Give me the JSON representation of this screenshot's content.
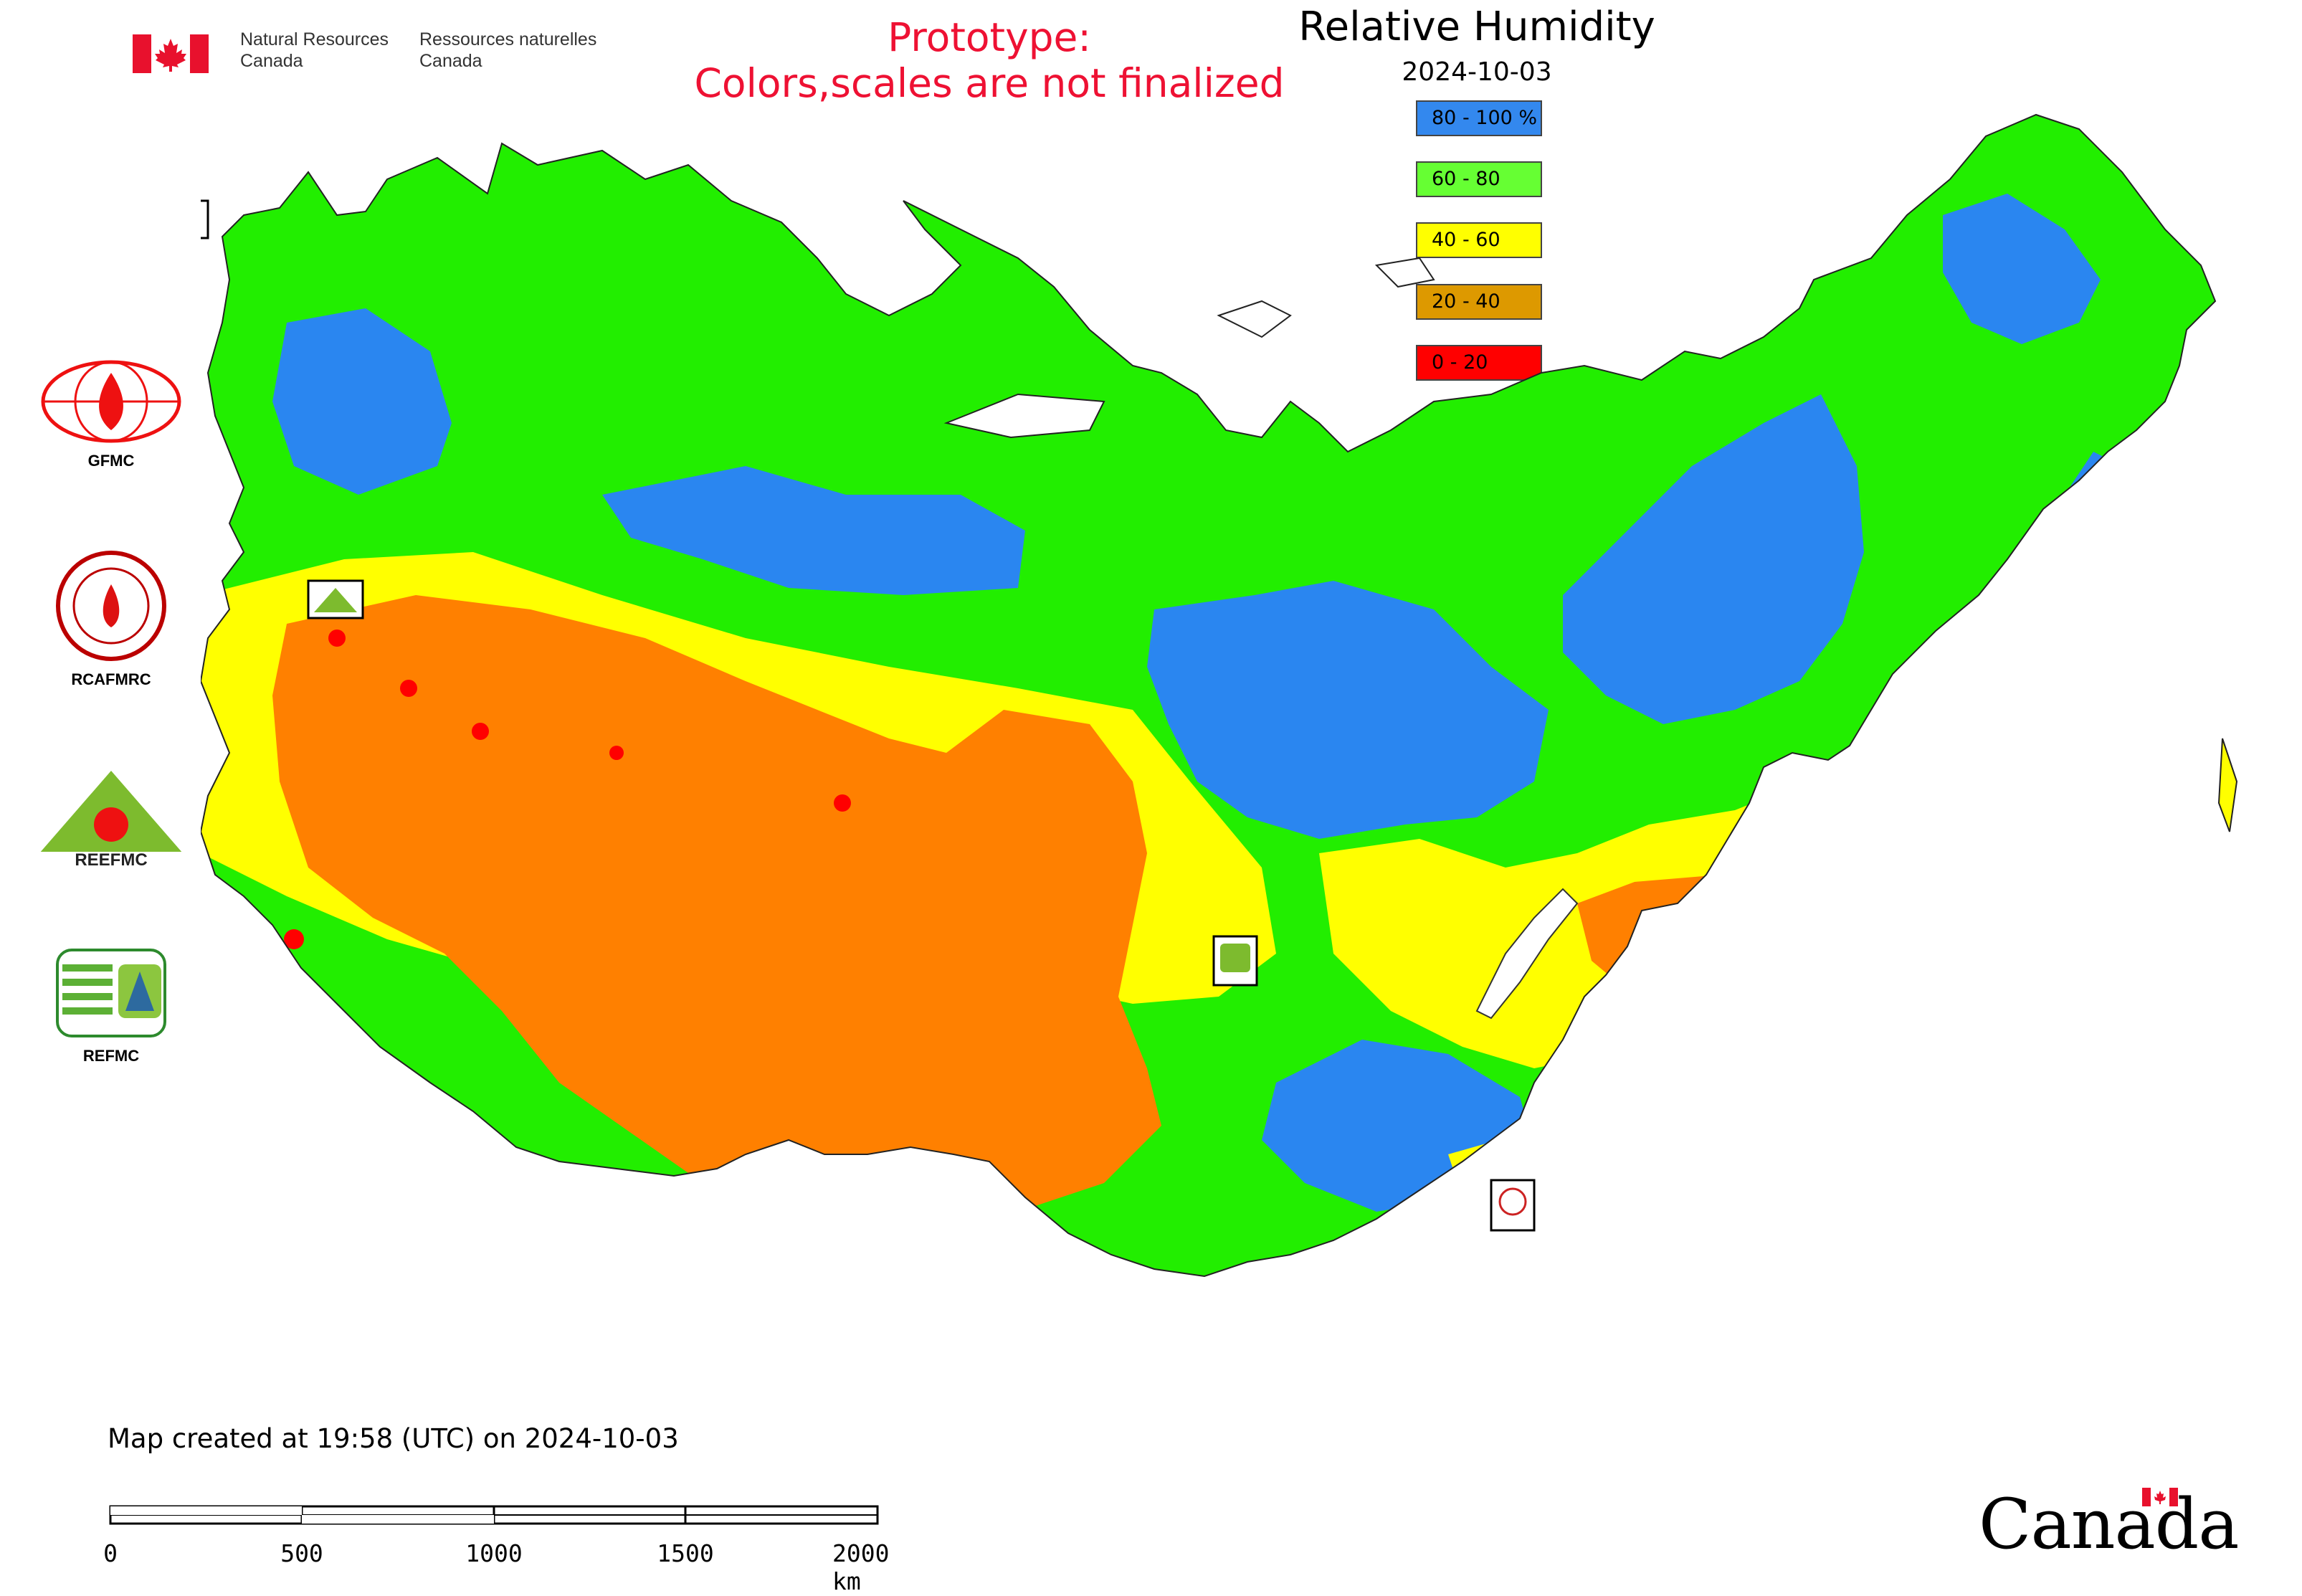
{
  "header": {
    "org_en_line1": "Natural Resources",
    "org_en_line2": "Canada",
    "org_fr_line1": "Ressources naturelles",
    "org_fr_line2": "Canada",
    "notice_line1": "Prototype:",
    "notice_line2": "Colors,scales are not finalized"
  },
  "map": {
    "title": "Relative Humidity",
    "date": "2024-10-03",
    "legend": [
      {
        "label": "80 - 100 %",
        "color": "#3388ee"
      },
      {
        "label": "60 - 80",
        "color": "#66ff33"
      },
      {
        "label": "40 - 60",
        "color": "#ffff00"
      },
      {
        "label": "20 - 40",
        "color": "#dd9900"
      },
      {
        "label": "0 - 20",
        "color": "#ff0000"
      }
    ],
    "fill_colors": {
      "blue": "#2a86f0",
      "green": "#22ee00",
      "yellow": "#ffff00",
      "orange": "#ff8000",
      "red": "#ff0000"
    },
    "station_marker_labels": [
      "GFMC",
      "REEFMC",
      "REFMC",
      "RCAFMRC"
    ]
  },
  "logos": [
    {
      "name": "GFMC",
      "icon": "gfmc-globe-flame-icon"
    },
    {
      "name": "RCAFMRC",
      "icon": "rcafmrc-seal-icon"
    },
    {
      "name": "REEFMC",
      "icon": "reefmc-triangle-icon"
    },
    {
      "name": "REFMC",
      "icon": "refmc-sigma-icon"
    }
  ],
  "footer": {
    "created": "Map created at 19:58 (UTC) on 2024-10-03",
    "scale_labels": [
      "0",
      "500",
      "1000",
      "1500",
      "2000 km"
    ],
    "wordmark": "Canada"
  }
}
